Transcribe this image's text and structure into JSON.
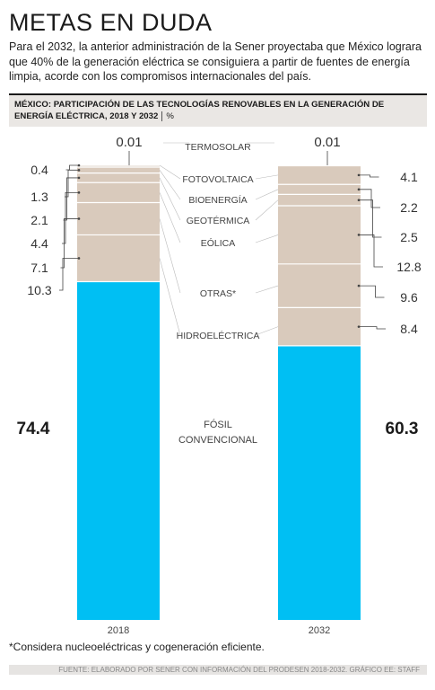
{
  "headline": "METAS EN DUDA",
  "lead": "Para el 2032, la anterior administración de la Sener proyectaba que México lograra que 40% de la generación eléctrica se consiguiera a partir de fuentes de energía limpia, acorde con los compromisos internacionales del país.",
  "subhead": "MÉXICO: PARTICIPACIÓN DE LAS TECNOLOGÍAS RENOVABLES EN LA GENERACIÓN DE ENERGÍA ELÉCTRICA, 2018 Y 2032",
  "subhead_unit": "%",
  "footnote": "*Considera nucleoeléctricas y cogeneración eficiente.",
  "source": "FUENTE: ELABORADO POR SENER CON INFORMACIÓN DEL PRODESEN 2018-2032. GRÁFICO EE: STAFF",
  "colors": {
    "fossil": "#00bff3",
    "renewables": "#d9cabc",
    "divider": "#ffffff",
    "leader": "#444444"
  },
  "chart_data": {
    "type": "bar",
    "stacked": true,
    "ylim": [
      0,
      100
    ],
    "categories": [
      "2018",
      "2032"
    ],
    "series": [
      {
        "name": "FÓSIL CONVENCIONAL",
        "values": [
          "74.4",
          "60.3"
        ],
        "color": "#00bff3"
      },
      {
        "name": "HIDROELÉCTRICA",
        "values": [
          "10.3",
          "8.4"
        ],
        "color": "#d9cabc"
      },
      {
        "name": "OTRAS*",
        "values": [
          "7.1",
          "9.6"
        ],
        "color": "#d9cabc"
      },
      {
        "name": "EÓLICA",
        "values": [
          "4.4",
          "12.8"
        ],
        "color": "#d9cabc"
      },
      {
        "name": "GEOTÉRMICA",
        "values": [
          "2.1",
          "2.5"
        ],
        "color": "#d9cabc"
      },
      {
        "name": "BIOENERGÍA",
        "values": [
          "1.3",
          "2.2"
        ],
        "color": "#d9cabc"
      },
      {
        "name": "FOTOVOLTAICA",
        "values": [
          "0.4",
          "4.1"
        ],
        "color": "#d9cabc"
      },
      {
        "name": "TERMOSOLAR",
        "values": [
          "0.01",
          "0.01"
        ],
        "color": "#d9cabc"
      }
    ]
  }
}
